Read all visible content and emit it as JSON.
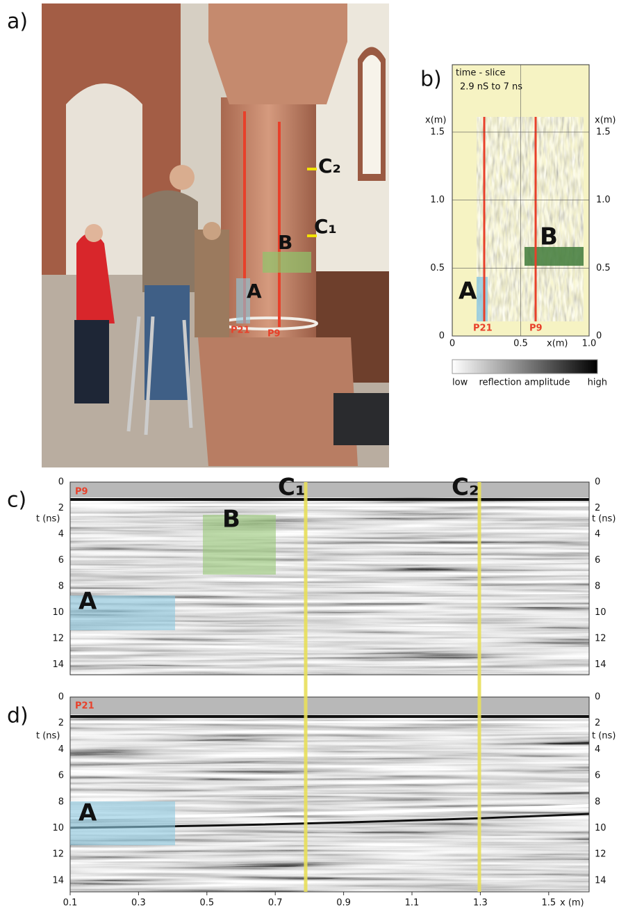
{
  "panel_a": {
    "label": "a)",
    "crossings": [
      "C₂",
      "C₁"
    ],
    "markers": [
      "B",
      "A"
    ],
    "profiles": [
      "P21",
      "P9"
    ]
  },
  "panel_b": {
    "label": "b)",
    "title": "time - slice",
    "subtitle": "2.9 nS  to  7 ns",
    "y_axis_label": "x(m)",
    "yticks": [
      "0",
      "0.5",
      "1.0",
      "1.5"
    ],
    "xticks": [
      "0",
      "0.5",
      "1.0"
    ],
    "x_axis_label": "x(m)",
    "markers": [
      "A",
      "B"
    ],
    "profiles": [
      "P21",
      "P9"
    ],
    "colorbar": {
      "low": "low",
      "label": "reflection amplitude",
      "high": "high"
    }
  },
  "panel_c": {
    "label": "c)",
    "profile": "P9",
    "y_axis_label": "t (ns)",
    "yticks": [
      "0",
      "2",
      "4",
      "6",
      "8",
      "10",
      "12",
      "14"
    ],
    "markers": [
      "A",
      "B"
    ],
    "crossings": [
      "C₁",
      "C₂"
    ]
  },
  "panel_d": {
    "label": "d)",
    "profile": "P21",
    "y_axis_label": "t (ns)",
    "yticks": [
      "0",
      "2",
      "4",
      "6",
      "8",
      "10",
      "12",
      "14"
    ],
    "markers": [
      "A"
    ],
    "xticks": [
      "0.1",
      "0.3",
      "0.5",
      "0.7",
      "0.9",
      "1.1",
      "1.3",
      "1.5"
    ],
    "x_axis_label": "x (m)"
  }
}
